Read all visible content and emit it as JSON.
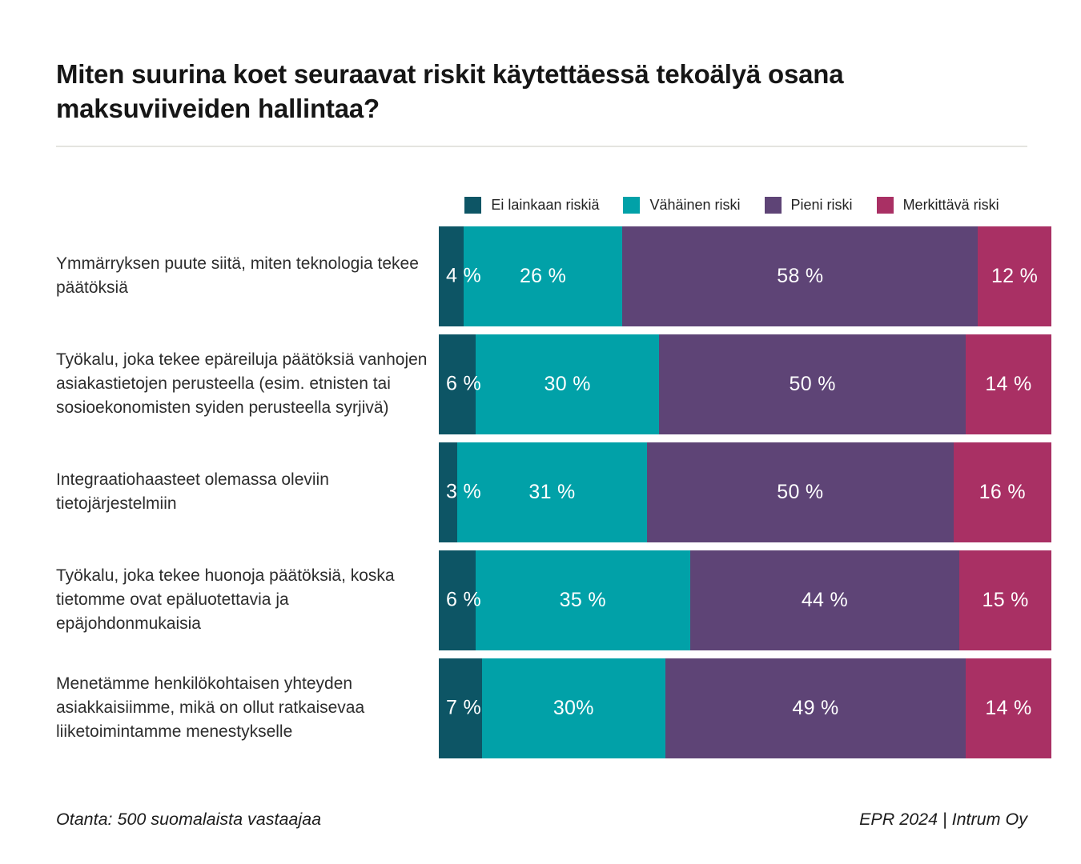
{
  "title": "Miten suurina koet seuraavat riskit käytettäessä tekoälyä osana maksuviiveiden hallintaa?",
  "colors": {
    "no_risk": "#0d5565",
    "minor_risk": "#01a1a8",
    "small_risk": "#5e4476",
    "significant_risk": "#a93064"
  },
  "legend": [
    {
      "label": "Ei lainkaan riskiä",
      "color": "#0d5565"
    },
    {
      "label": "Vähäinen riski",
      "color": "#01a1a8"
    },
    {
      "label": "Pieni riski",
      "color": "#5e4476"
    },
    {
      "label": "Merkittävä riski",
      "color": "#a93064"
    }
  ],
  "chart_data": {
    "type": "bar",
    "orientation": "horizontal-stacked",
    "unit": "%",
    "xlim": [
      0,
      100
    ],
    "legend_position": "top-center-over-bars",
    "grid": false,
    "title": "Miten suurina koet seuraavat riskit käytettäessä tekoälyä osana maksuviiveiden hallintaa?",
    "categories": [
      "Ymmärryksen puute siitä, miten teknologia tekee päätöksiä",
      "Työkalu, joka tekee epäreiluja päätöksiä vanhojen asiakastietojen perusteella (esim. etnisten tai sosioekonomisten syiden perusteella syrjivä)",
      "Integraatiohaasteet olemassa oleviin tietojärjestelmiin",
      "Työkalu, joka tekee huonoja päätöksiä, koska tietomme ovat epäluotettavia ja epäjohdonmukaisia",
      "Menetämme henkilökohtaisen yhteyden asiakkaisiimme, mikä on ollut ratkaisevaa liiketoimintamme menestykselle"
    ],
    "series": [
      {
        "name": "Ei lainkaan riskiä",
        "color": "#0d5565",
        "values": [
          4,
          6,
          3,
          6,
          7
        ]
      },
      {
        "name": "Vähäinen riski",
        "color": "#01a1a8",
        "values": [
          26,
          30,
          31,
          35,
          30
        ]
      },
      {
        "name": "Pieni riski",
        "color": "#5e4476",
        "values": [
          58,
          50,
          50,
          44,
          49
        ]
      },
      {
        "name": "Merkittävä riski",
        "color": "#a93064",
        "values": [
          12,
          14,
          16,
          15,
          14
        ]
      }
    ],
    "value_labels": [
      [
        "4 %",
        "26 %",
        "58 %",
        "12 %"
      ],
      [
        "6 %",
        "30 %",
        "50 %",
        "14 %"
      ],
      [
        "3 %",
        "31 %",
        "50 %",
        "16 %"
      ],
      [
        "6 %",
        "35 %",
        "44 %",
        "15 %"
      ],
      [
        "7 %",
        "30%",
        "49 %",
        "14 %"
      ]
    ]
  },
  "footer": {
    "left": "Otanta: 500 suomalaista vastaajaa",
    "right": "EPR 2024 | Intrum Oy"
  }
}
